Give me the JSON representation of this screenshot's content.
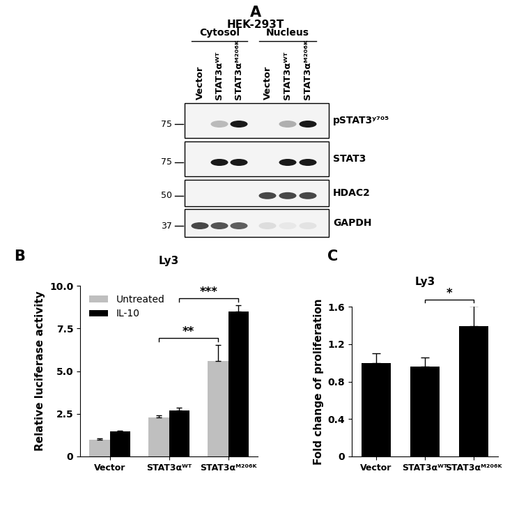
{
  "blot": {
    "panel": "A",
    "cell_line": "HEK-293T",
    "fractions": [
      {
        "name": "Cytosol",
        "lanes": [
          "Vector",
          "STAT3αᵂᵀ",
          "STAT3αᴹ²⁰⁶ᴷ"
        ]
      },
      {
        "name": "Nucleus",
        "lanes": [
          "Vector",
          "STAT3αᵂᵀ",
          "STAT3αᴹ²⁰⁶ᴷ"
        ]
      }
    ],
    "rows": [
      {
        "label": "pSTAT3ʸ⁷⁰⁵",
        "marker_kda": 75,
        "intensity": [
          0,
          0.3,
          1.0,
          0.05,
          0.35,
          1.0
        ]
      },
      {
        "label": "STAT3",
        "marker_kda": 75,
        "intensity": [
          0,
          1.0,
          1.0,
          0.05,
          1.0,
          1.0
        ]
      },
      {
        "label": "HDAC2",
        "marker_kda": 50,
        "intensity": [
          0.05,
          0.05,
          0.05,
          0.8,
          0.8,
          0.8
        ]
      },
      {
        "label": "GAPDH",
        "marker_kda": 37,
        "intensity": [
          0.8,
          0.75,
          0.7,
          0.15,
          0.1,
          0.12
        ]
      }
    ]
  },
  "chart_data": [
    {
      "panel": "B",
      "type": "bar",
      "title": "Ly3",
      "categories": [
        "Vector",
        "STAT3αᵂᵀ",
        "STAT3αᴹ²⁰⁶ᴷ"
      ],
      "series": [
        {
          "name": "Untreated",
          "color": "#bfbfbf",
          "values": [
            1.0,
            2.3,
            5.6
          ],
          "error": [
            0.05,
            0.1,
            0.95
          ]
        },
        {
          "name": "IL-10",
          "color": "#000000",
          "values": [
            1.45,
            2.7,
            8.5
          ],
          "error": [
            0.08,
            0.15,
            0.35
          ]
        }
      ],
      "ylabel": "Relative luciferase activity",
      "ylim": [
        0,
        10
      ],
      "yticks": [
        0,
        {
          "value": 2.5,
          "label": "2.5"
        },
        {
          "value": 5,
          "label": "5.0"
        },
        {
          "value": 7.5,
          "label": "7.5"
        },
        {
          "value": 10,
          "label": "10.0"
        }
      ],
      "legend": "upper left",
      "significance": [
        {
          "label": "**",
          "series": "Untreated",
          "between": [
            "STAT3αᵂᵀ",
            "STAT3αᴹ²⁰⁶ᴷ"
          ]
        },
        {
          "label": "***",
          "series": "IL-10",
          "between": [
            "STAT3αᵂᵀ",
            "STAT3αᴹ²⁰⁶ᴷ"
          ]
        }
      ]
    },
    {
      "panel": "C",
      "type": "bar",
      "title": "Ly3",
      "categories": [
        "Vector",
        "STAT3αᵂᵀ",
        "STAT3αᴹ²⁰⁶ᴷ"
      ],
      "values": [
        1.0,
        0.96,
        1.39
      ],
      "error": [
        0.1,
        0.1,
        0.22
      ],
      "color": "#000000",
      "ylabel": "Fold change of proliferation",
      "ylim": [
        0,
        1.6
      ],
      "yticks": [
        0,
        0.4,
        0.8,
        1.2,
        1.6
      ],
      "significance": [
        {
          "label": "*",
          "between": [
            "STAT3αᵂᵀ",
            "STAT3αᴹ²⁰⁶ᴷ"
          ]
        }
      ]
    }
  ]
}
